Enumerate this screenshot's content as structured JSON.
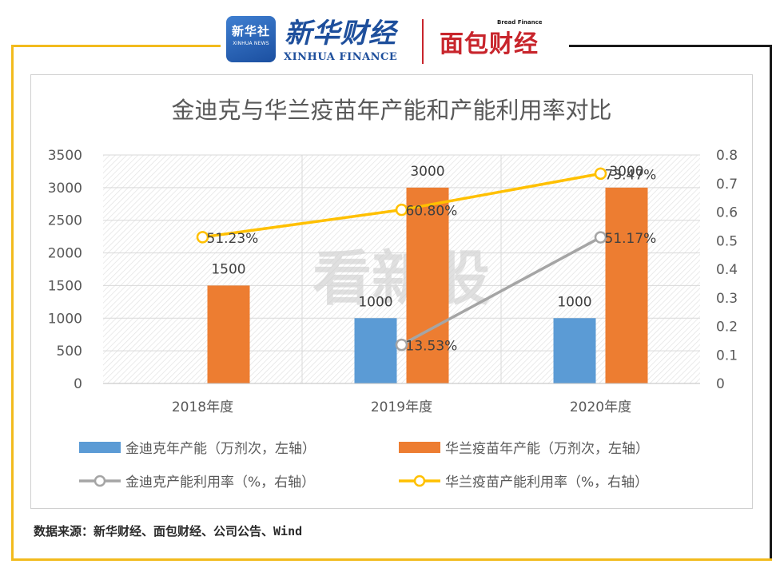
{
  "header": {
    "xinhua_badge_cn": "新华社",
    "xinhua_badge_en": "XINHUA NEWS",
    "xinhua_finance_cn": "新华财经",
    "xinhua_finance_en": "XINHUA FINANCE",
    "bread_finance_en": "Bread Finance",
    "bread_finance_cn": "面包财经"
  },
  "watermark": "看新股",
  "source": "数据来源：新华财经、面包财经、公司公告、Wind",
  "colors": {
    "kingdak_bar": "#5b9bd5",
    "hualan_bar": "#ed7d31",
    "kingdak_line": "#a5a5a5",
    "hualan_line": "#ffc000",
    "frame_accent": "#f2bb1d"
  },
  "chart_data": {
    "type": "bar",
    "title": "金迪克与华兰疫苗年产能和产能利用率对比",
    "categories": [
      "2018年度",
      "2019年度",
      "2020年度"
    ],
    "y_left": {
      "ticks": [
        "0",
        "500",
        "1000",
        "1500",
        "2000",
        "2500",
        "3000",
        "3500"
      ],
      "ylim": [
        0,
        3500
      ]
    },
    "y_right": {
      "ticks": [
        "0",
        "0.1",
        "0.2",
        "0.3",
        "0.4",
        "0.5",
        "0.6",
        "0.7",
        "0.8"
      ],
      "ylim": [
        0,
        0.8
      ]
    },
    "bar_series": [
      {
        "name": "金迪克年产能（万剂次，左轴）",
        "values": [
          null,
          1000,
          1000
        ],
        "labels": [
          "",
          "1000",
          "1000"
        ]
      },
      {
        "name": "华兰疫苗年产能（万剂次，左轴）",
        "values": [
          1500,
          3000,
          3000
        ],
        "labels": [
          "1500",
          "3000",
          "3000"
        ]
      }
    ],
    "line_series": [
      {
        "name": "金迪克产能利用率（%，右轴）",
        "values": [
          null,
          0.1353,
          0.5117
        ],
        "labels": [
          "",
          "13.53%",
          "51.17%"
        ]
      },
      {
        "name": "华兰疫苗产能利用率（%，右轴）",
        "values": [
          0.5123,
          0.608,
          0.7347
        ],
        "labels": [
          "51.23%",
          "60.80%",
          "73.47%"
        ]
      }
    ],
    "grid": true,
    "legend_position": "bottom"
  }
}
